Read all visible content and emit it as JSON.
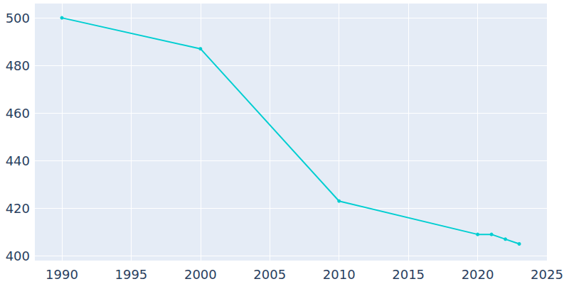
{
  "chart_data": {
    "type": "line",
    "x": [
      1990,
      2000,
      2010,
      2020,
      2021,
      2022,
      2023
    ],
    "values": [
      500,
      487,
      423,
      409,
      409,
      407,
      405
    ],
    "color": "#00ced1",
    "xlim": [
      1988,
      2025
    ],
    "xticks": [
      1990,
      1995,
      2000,
      2005,
      2010,
      2015,
      2020,
      2025
    ],
    "ylim": [
      398,
      506
    ],
    "yticks": [
      400,
      420,
      440,
      460,
      480,
      500
    ],
    "grid": true,
    "marker": "circle"
  }
}
